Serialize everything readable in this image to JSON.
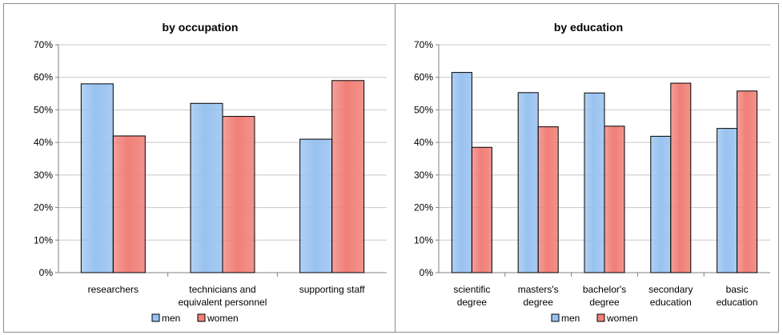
{
  "colors": {
    "men": "#99c2f0",
    "women": "#f08078",
    "axis": "#808080",
    "grid": "#c8c8c8"
  },
  "chart_data": [
    {
      "type": "bar",
      "title": "by occupation",
      "categories": [
        "researchers",
        "technicians and\nequivalent personnel",
        "supporting staff"
      ],
      "series": [
        {
          "name": "men",
          "values": [
            58,
            52,
            41
          ]
        },
        {
          "name": "women",
          "values": [
            42,
            48,
            59
          ]
        }
      ],
      "ylim": [
        0,
        70
      ],
      "yticks": [
        "0%",
        "10%",
        "20%",
        "30%",
        "40%",
        "50%",
        "60%",
        "70%"
      ],
      "xlabel": "",
      "ylabel": "",
      "grid": true,
      "legend": "bottom"
    },
    {
      "type": "bar",
      "title": "by education",
      "categories": [
        "scientific\ndegree",
        "masters's\ndegree",
        "bachelor's\ndegree",
        "secondary\neducation",
        "basic\neducation"
      ],
      "series": [
        {
          "name": "men",
          "values": [
            61.5,
            55.3,
            55.2,
            41.9,
            44.3
          ]
        },
        {
          "name": "women",
          "values": [
            38.5,
            44.8,
            45,
            58.2,
            55.8
          ]
        }
      ],
      "ylim": [
        0,
        70
      ],
      "yticks": [
        "0%",
        "10%",
        "20%",
        "30%",
        "40%",
        "50%",
        "60%",
        "70%"
      ],
      "xlabel": "",
      "ylabel": "",
      "grid": true,
      "legend": "bottom"
    }
  ]
}
